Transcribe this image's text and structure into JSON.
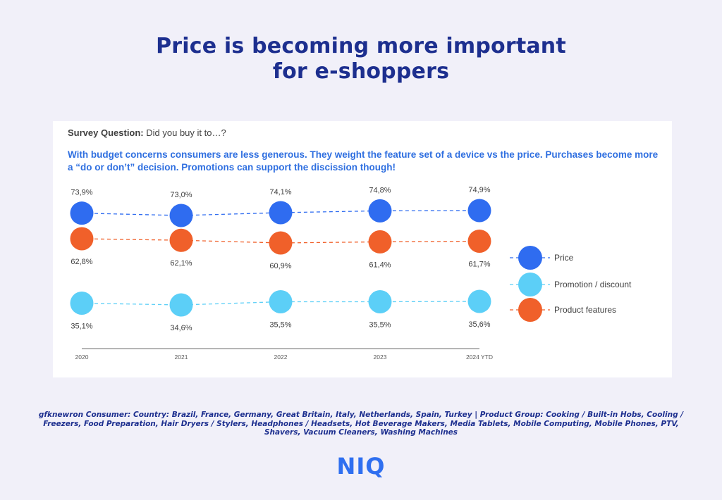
{
  "title": {
    "line1": "Price is becoming more important",
    "line2": "for e-shoppers"
  },
  "survey": {
    "label": "Survey Question:",
    "question": "Did you buy it to…?"
  },
  "insight": "With budget concerns consumers are less generous. They weight the feature set of a device vs the price. Purchases become more a “do or don’t” decision. Promotions can support the discission though!",
  "chart_data": {
    "type": "line",
    "categories": [
      "2020",
      "2021",
      "2022",
      "2023",
      "2024 YTD"
    ],
    "series": [
      {
        "name": "Price",
        "color": "#2f6cf0",
        "values": [
          73.9,
          73.0,
          74.1,
          74.8,
          74.9
        ],
        "labels": [
          "73,9%",
          "73,0%",
          "74,1%",
          "74,8%",
          "74,9%"
        ],
        "label_position": "above"
      },
      {
        "name": "Promotion / discount",
        "color": "#5ccff7",
        "values": [
          35.1,
          34.6,
          35.5,
          35.5,
          35.6
        ],
        "labels": [
          "35,1%",
          "34,6%",
          "35,5%",
          "35,5%",
          "35,6%"
        ],
        "label_position": "below"
      },
      {
        "name": "Product features",
        "color": "#f0602a",
        "values": [
          62.8,
          62.1,
          60.9,
          61.4,
          61.7
        ],
        "labels": [
          "62,8%",
          "62,1%",
          "60,9%",
          "61,4%",
          "61,7%"
        ],
        "label_position": "below"
      }
    ],
    "line_style": "dashed",
    "markers": "large circles",
    "legend_placement": "right",
    "grid": false,
    "y_axis_visible": false
  },
  "footnote": "gfknewron Consumer: Country: Brazil, France, Germany, Great Britain, Italy, Netherlands, Spain, Turkey | Product Group: Cooking / Built-in Hobs, Cooling / Freezers, Food Preparation, Hair Dryers / Stylers, Headphones / Headsets, Hot Beverage Makers, Media Tablets, Mobile Computing, Mobile Phones, PTV, Shavers, Vacuum Cleaners, Washing Machines",
  "logo": "NIQ"
}
